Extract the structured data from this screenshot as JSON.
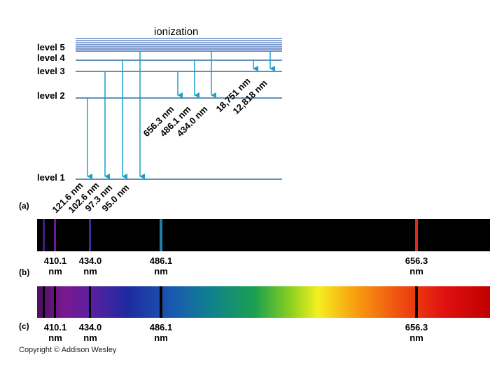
{
  "ionization_label": "ionization",
  "levels": [
    "level 5",
    "level 4",
    "level 3",
    "level 2",
    "level 1"
  ],
  "lyman_transitions": [
    "121.6 nm",
    "102.6 nm",
    "97.3 nm",
    "95.0 nm"
  ],
  "balmer_transitions": [
    "656.3 nm",
    "486.1 nm",
    "434.0 nm"
  ],
  "paschen_transitions": [
    "18,751 nm",
    "12,818 nm"
  ],
  "panel_labels": [
    "(a)",
    "(b)",
    "(c)"
  ],
  "spectrum_lines": [
    {
      "value": "410.1",
      "unit": "nm",
      "color": "#6a1a9a"
    },
    {
      "value": "434.0",
      "unit": "nm",
      "color": "#3a2a9a"
    },
    {
      "value": "486.1",
      "unit": "nm",
      "color": "#1f7fa8"
    },
    {
      "value": "656.3",
      "unit": "nm",
      "color": "#e02a1a"
    }
  ],
  "colors": {
    "level_line": "#2f6fa0",
    "arrow": "#1aa0c8",
    "emission_background": "#000000",
    "ionization_band": "#8ea8d8"
  },
  "copyright": "Copyright © Addison Wesley"
}
